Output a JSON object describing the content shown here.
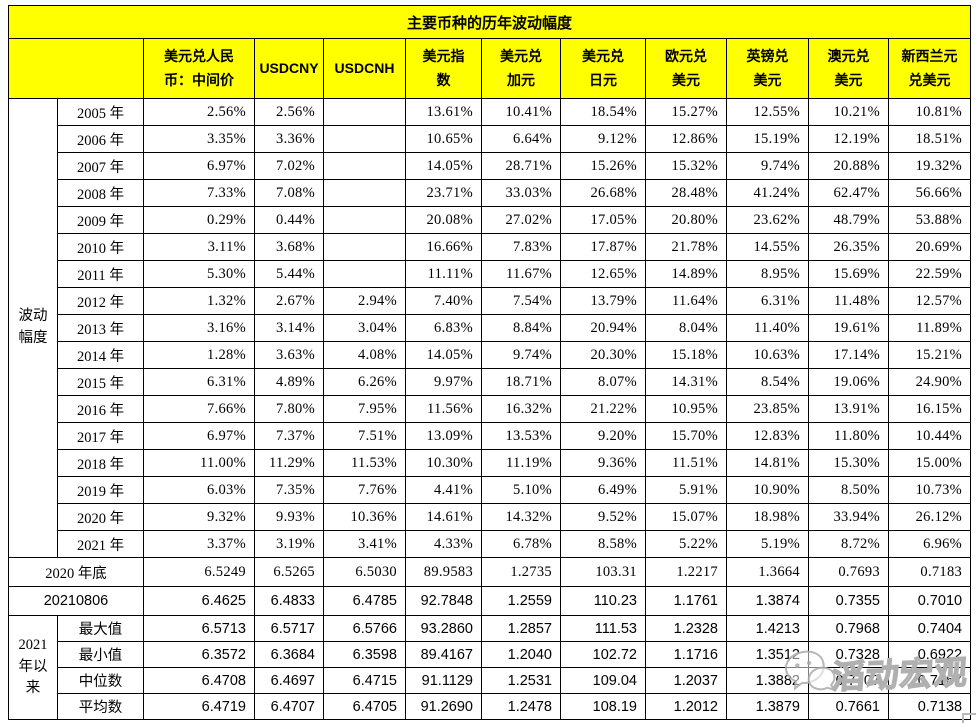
{
  "colors": {
    "header_yellow": "#ffff00",
    "border": "#000000",
    "text": "#000000",
    "watermark_gray": "#b0b0b0"
  },
  "watermark": {
    "text": "滔动宏观"
  },
  "chart_data": {
    "type": "table",
    "title": "主要币种的历年波动幅度",
    "columns": [
      "美元兑人民\n币：中间价",
      "USDCNY",
      "USDCNH",
      "美元指\n数",
      "美元兑\n加元",
      "美元兑\n日元",
      "欧元兑\n美元",
      "英镑兑\n美元",
      "澳元兑\n美元",
      "新西兰元\n兑美元"
    ],
    "row_group_label": "波动\n幅度",
    "volatility_rows": [
      {
        "year": "2005 年",
        "values": [
          "2.56%",
          "2.56%",
          "",
          "13.61%",
          "10.41%",
          "18.54%",
          "15.27%",
          "12.55%",
          "10.21%",
          "10.81%"
        ]
      },
      {
        "year": "2006 年",
        "values": [
          "3.35%",
          "3.36%",
          "",
          "10.65%",
          "6.64%",
          "9.12%",
          "12.86%",
          "15.19%",
          "12.19%",
          "18.51%"
        ]
      },
      {
        "year": "2007 年",
        "values": [
          "6.97%",
          "7.02%",
          "",
          "14.05%",
          "28.71%",
          "15.26%",
          "15.32%",
          "9.74%",
          "20.88%",
          "19.32%"
        ]
      },
      {
        "year": "2008 年",
        "values": [
          "7.33%",
          "7.08%",
          "",
          "23.71%",
          "33.03%",
          "26.68%",
          "28.48%",
          "41.24%",
          "62.47%",
          "56.66%"
        ]
      },
      {
        "year": "2009 年",
        "values": [
          "0.29%",
          "0.44%",
          "",
          "20.08%",
          "27.02%",
          "17.05%",
          "20.80%",
          "23.62%",
          "48.79%",
          "53.88%"
        ]
      },
      {
        "year": "2010 年",
        "values": [
          "3.11%",
          "3.68%",
          "",
          "16.66%",
          "7.83%",
          "17.87%",
          "21.78%",
          "14.55%",
          "26.35%",
          "20.69%"
        ]
      },
      {
        "year": "2011 年",
        "values": [
          "5.30%",
          "5.44%",
          "",
          "11.11%",
          "11.67%",
          "12.65%",
          "14.89%",
          "8.95%",
          "15.69%",
          "22.59%"
        ]
      },
      {
        "year": "2012 年",
        "values": [
          "1.32%",
          "2.67%",
          "2.94%",
          "7.40%",
          "7.54%",
          "13.79%",
          "11.64%",
          "6.31%",
          "11.48%",
          "12.57%"
        ]
      },
      {
        "year": "2013 年",
        "values": [
          "3.16%",
          "3.14%",
          "3.04%",
          "6.83%",
          "8.84%",
          "20.94%",
          "8.04%",
          "11.40%",
          "19.61%",
          "11.89%"
        ]
      },
      {
        "year": "2014 年",
        "values": [
          "1.28%",
          "3.63%",
          "4.08%",
          "14.05%",
          "9.74%",
          "20.30%",
          "15.18%",
          "10.63%",
          "17.14%",
          "15.21%"
        ]
      },
      {
        "year": "2015 年",
        "values": [
          "6.31%",
          "4.89%",
          "6.26%",
          "9.97%",
          "18.71%",
          "8.07%",
          "14.31%",
          "8.54%",
          "19.06%",
          "24.90%"
        ]
      },
      {
        "year": "2016 年",
        "values": [
          "7.66%",
          "7.80%",
          "7.95%",
          "11.56%",
          "16.32%",
          "21.22%",
          "10.95%",
          "23.85%",
          "13.91%",
          "16.15%"
        ]
      },
      {
        "year": "2017 年",
        "values": [
          "6.97%",
          "7.37%",
          "7.51%",
          "13.09%",
          "13.53%",
          "9.20%",
          "15.70%",
          "12.83%",
          "11.80%",
          "10.44%"
        ]
      },
      {
        "year": "2018 年",
        "values": [
          "11.00%",
          "11.29%",
          "11.53%",
          "10.30%",
          "11.19%",
          "9.36%",
          "11.51%",
          "14.81%",
          "15.30%",
          "15.00%"
        ]
      },
      {
        "year": "2019 年",
        "values": [
          "6.03%",
          "7.35%",
          "7.76%",
          "4.41%",
          "5.10%",
          "6.49%",
          "5.91%",
          "10.90%",
          "8.50%",
          "10.73%"
        ]
      },
      {
        "year": "2020 年",
        "values": [
          "9.32%",
          "9.93%",
          "10.36%",
          "14.61%",
          "14.32%",
          "9.52%",
          "15.07%",
          "18.98%",
          "33.94%",
          "26.12%"
        ]
      },
      {
        "year": "2021 年",
        "values": [
          "3.37%",
          "3.19%",
          "3.41%",
          "4.33%",
          "6.78%",
          "8.58%",
          "5.22%",
          "5.19%",
          "8.72%",
          "6.96%"
        ]
      }
    ],
    "summary_rows": [
      {
        "label": "2020 年底",
        "values": [
          "6.5249",
          "6.5265",
          "6.5030",
          "89.9583",
          "1.2735",
          "103.31",
          "1.2217",
          "1.3664",
          "0.7693",
          "0.7183"
        ]
      },
      {
        "label": "20210806",
        "values": [
          "6.4625",
          "6.4833",
          "6.4785",
          "92.7848",
          "1.2559",
          "110.23",
          "1.1761",
          "1.3874",
          "0.7355",
          "0.7010"
        ]
      }
    ],
    "stats_group_label": "2021\n年以\n来",
    "stat_rows": [
      {
        "label": "最大值",
        "values": [
          "6.5713",
          "6.5717",
          "6.5766",
          "93.2860",
          "1.2857",
          "111.53",
          "1.2328",
          "1.4213",
          "0.7968",
          "0.7404"
        ]
      },
      {
        "label": "最小值",
        "values": [
          "6.3572",
          "6.3684",
          "6.3598",
          "89.4167",
          "1.2040",
          "102.72",
          "1.1716",
          "1.3512",
          "0.7328",
          "0.6922"
        ]
      },
      {
        "label": "中位数",
        "values": [
          "6.4708",
          "6.4697",
          "6.4715",
          "91.1129",
          "1.2531",
          "109.04",
          "1.2037",
          "1.3882",
          "0.7707",
          "0.7167"
        ]
      },
      {
        "label": "平均数",
        "values": [
          "6.4719",
          "6.4707",
          "6.4705",
          "91.2690",
          "1.2478",
          "108.19",
          "1.2012",
          "1.3879",
          "0.7661",
          "0.7138"
        ]
      }
    ]
  }
}
